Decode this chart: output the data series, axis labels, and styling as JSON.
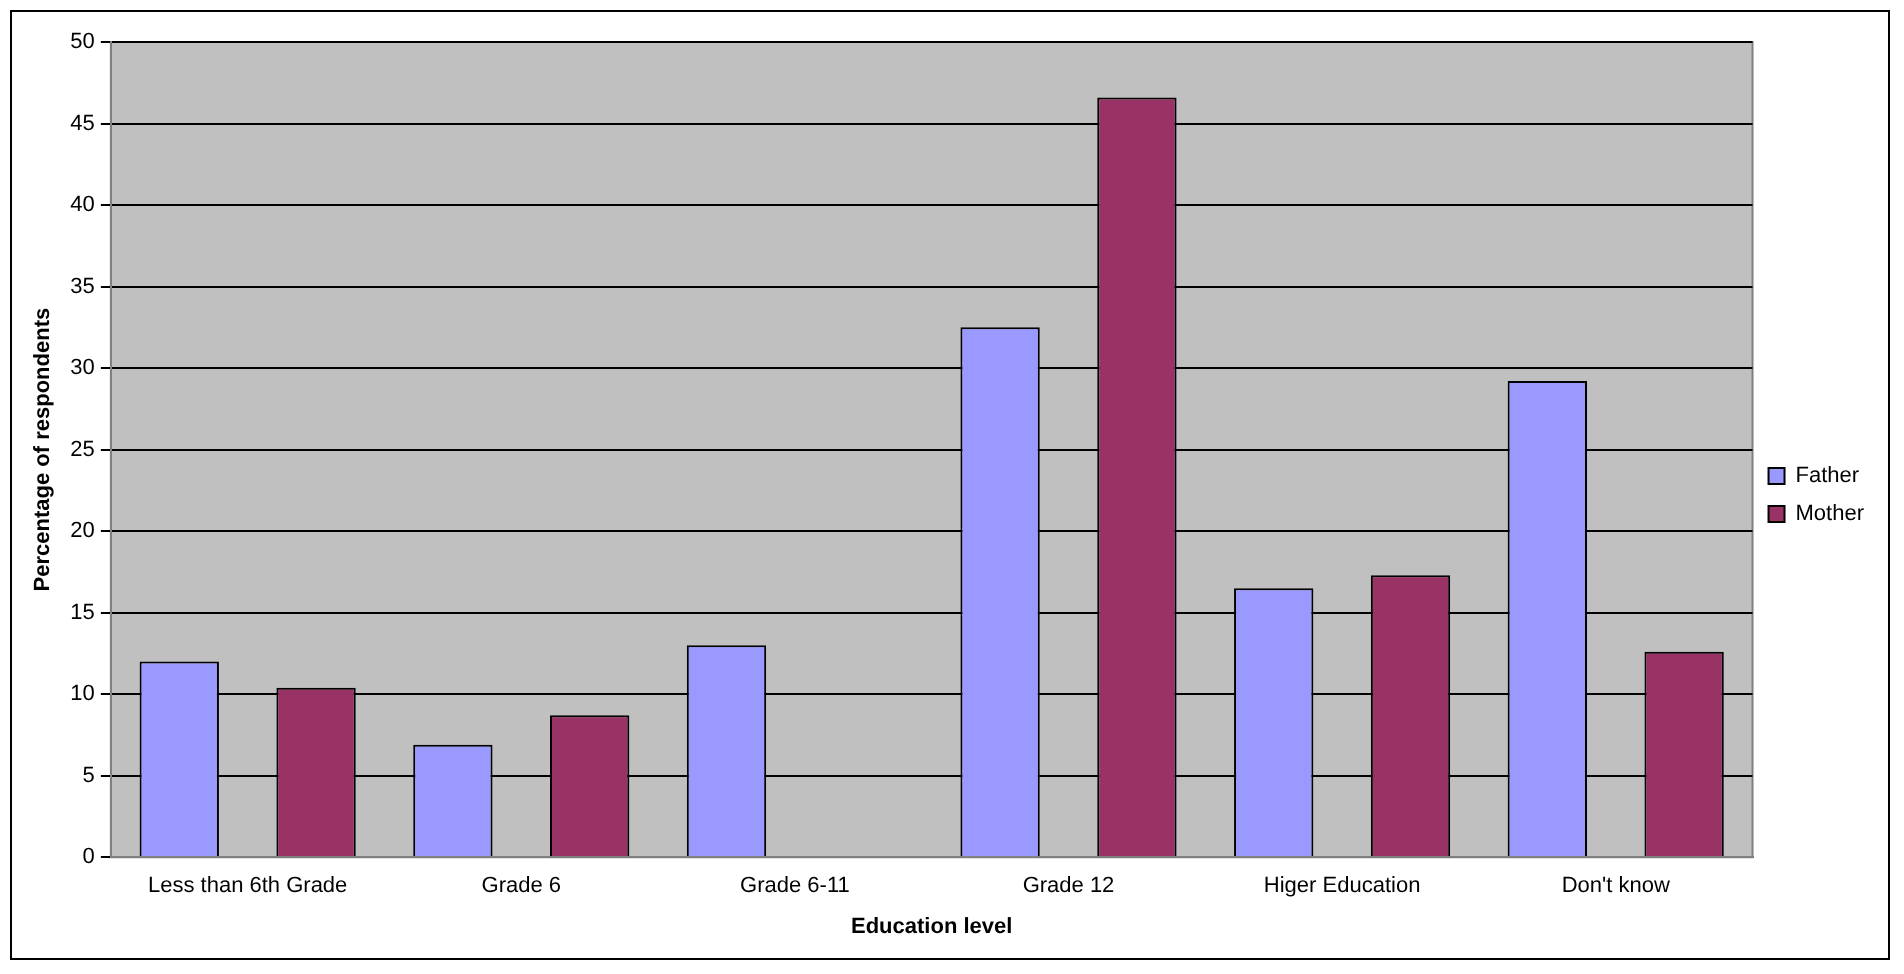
{
  "chart_data": {
    "type": "bar",
    "xlabel": "Education level",
    "ylabel": "Percentage of respondents",
    "categories": [
      "Less than 6th Grade",
      "Grade 6",
      "Grade 6-11",
      "Grade 12",
      "Higer Education",
      "Don't know"
    ],
    "series": [
      {
        "name": "Father",
        "color": "#9999ff",
        "values": [
          12.0,
          6.9,
          13.0,
          32.5,
          16.5,
          29.2
        ]
      },
      {
        "name": "Mother",
        "color": "#993366",
        "values": [
          10.4,
          8.7,
          0,
          46.6,
          17.3,
          12.6
        ]
      }
    ],
    "ylim": [
      0,
      50
    ],
    "yticks": [
      0,
      5,
      10,
      15,
      20,
      25,
      30,
      35,
      40,
      45,
      50
    ],
    "grid": "y",
    "legend": "right"
  }
}
